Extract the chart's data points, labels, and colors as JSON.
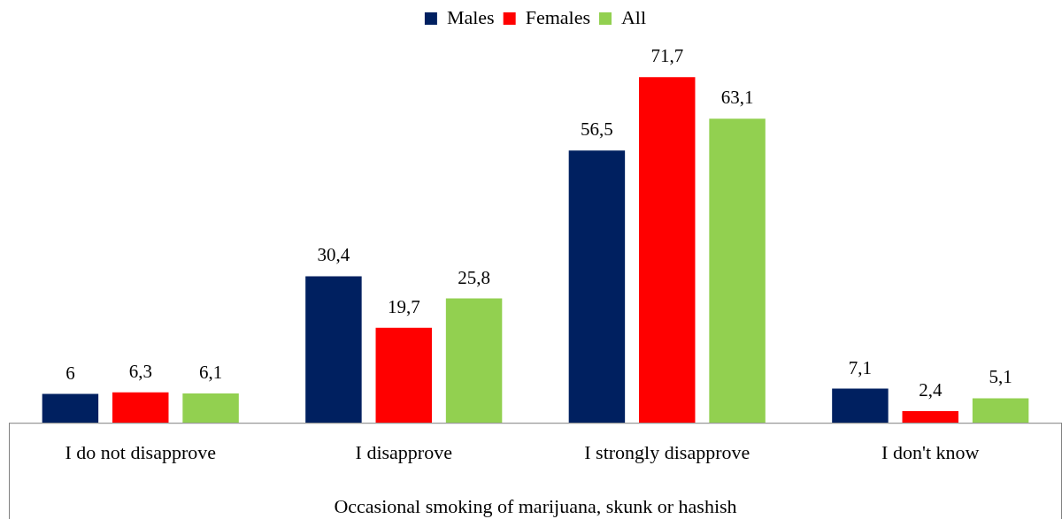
{
  "chart_data": {
    "type": "bar",
    "xlabel": "Occasional smoking of marijuana, skunk or hashish",
    "categories": [
      "I do not disapprove",
      "I disapprove",
      "I strongly disapprove",
      "I don't know"
    ],
    "series": [
      {
        "name": "Males",
        "color": "#002060",
        "values": [
          6,
          30.4,
          56.5,
          7.1
        ],
        "value_labels": [
          "6",
          "30,4",
          "56,5",
          "7,1"
        ]
      },
      {
        "name": "Females",
        "color": "#ff0000",
        "values": [
          6.3,
          19.7,
          71.7,
          2.4
        ],
        "value_labels": [
          "6,3",
          "19,7",
          "71,7",
          "2,4"
        ]
      },
      {
        "name": "All",
        "color": "#92d050",
        "values": [
          6.1,
          25.8,
          63.1,
          5.1
        ],
        "value_labels": [
          "6,1",
          "25,8",
          "63,1",
          "5,1"
        ]
      }
    ],
    "grid": false,
    "legend": "top"
  }
}
